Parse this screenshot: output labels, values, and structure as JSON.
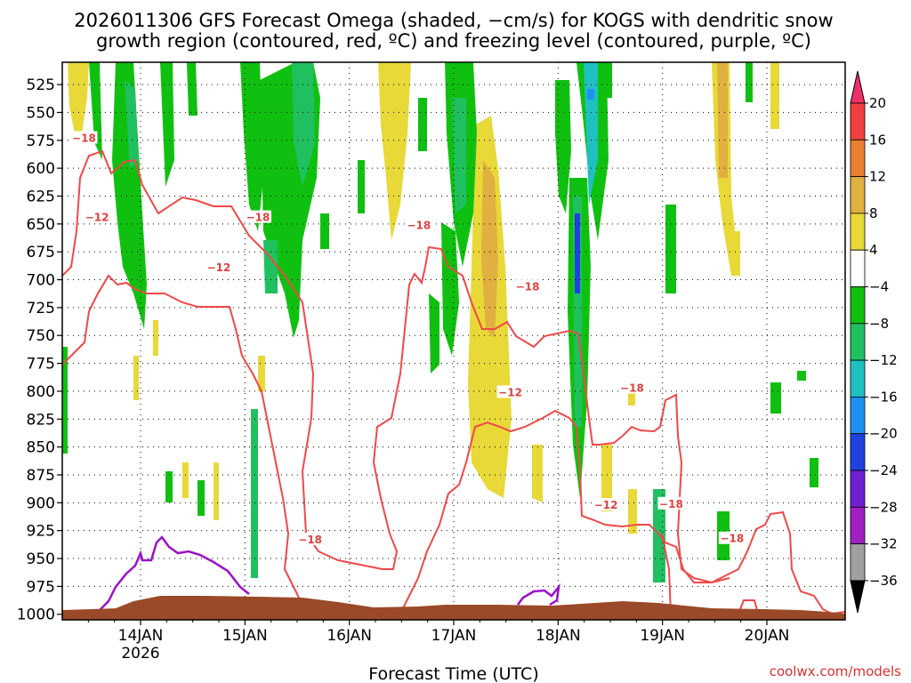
{
  "chart_data": {
    "type": "contour",
    "title_line1": "2026011306 GFS Forecast Omega (shaded, −cm/s) for KOGS with dendritic snow",
    "title_line2": "growth region (contoured, red, ºC) and freezing level (contoured, purple, ºC)",
    "xlabel": "Forecast Time (UTC)",
    "credit": "coolwx.com/models",
    "y_ticks": [
      "525",
      "550",
      "575",
      "600",
      "625",
      "650",
      "675",
      "700",
      "725",
      "750",
      "775",
      "800",
      "825",
      "850",
      "875",
      "900",
      "925",
      "950",
      "975",
      "1000"
    ],
    "x_ticks": [
      {
        "label": "14JAN",
        "sub": "2026",
        "hour": 18
      },
      {
        "label": "15JAN",
        "sub": "",
        "hour": 42
      },
      {
        "label": "16JAN",
        "sub": "",
        "hour": 66
      },
      {
        "label": "17JAN",
        "sub": "",
        "hour": 90
      },
      {
        "label": "18JAN",
        "sub": "",
        "hour": 114
      },
      {
        "label": "19JAN",
        "sub": "",
        "hour": 138
      },
      {
        "label": "20JAN",
        "sub": "",
        "hour": 162
      }
    ],
    "x_range_hours": [
      0,
      180
    ],
    "y_range_hpa": [
      505,
      1005
    ],
    "colorbar_labels": [
      "20",
      "16",
      "12",
      "8",
      "4",
      "−4",
      "−8",
      "−12",
      "−16",
      "−20",
      "−24",
      "−28",
      "−32",
      "−36"
    ],
    "colorbar_colors": [
      "#f0306a",
      "#f04040",
      "#e88030",
      "#e0b040",
      "#e8d838",
      "#ffffff",
      "#10c010",
      "#20c060",
      "#20c0c0",
      "#2090f0",
      "#2040e0",
      "#7020d0",
      "#a020c0",
      "#a0a0a0",
      "#000000"
    ],
    "contour_labels_red": [
      {
        "text": "−18",
        "hour": 5,
        "p": 574
      },
      {
        "text": "−12",
        "hour": 8,
        "p": 645
      },
      {
        "text": "−18",
        "hour": 45,
        "p": 645
      },
      {
        "text": "−12",
        "hour": 36,
        "p": 690
      },
      {
        "text": "−18",
        "hour": 82,
        "p": 652
      },
      {
        "text": "−18",
        "hour": 107,
        "p": 707
      },
      {
        "text": "−12",
        "hour": 103,
        "p": 802
      },
      {
        "text": "−18",
        "hour": 131,
        "p": 798
      },
      {
        "text": "−18",
        "hour": 57,
        "p": 934
      },
      {
        "text": "−12",
        "hour": 125,
        "p": 903
      },
      {
        "text": "−18",
        "hour": 140,
        "p": 902
      },
      {
        "text": "−18",
        "hour": 154,
        "p": 933
      }
    ]
  }
}
